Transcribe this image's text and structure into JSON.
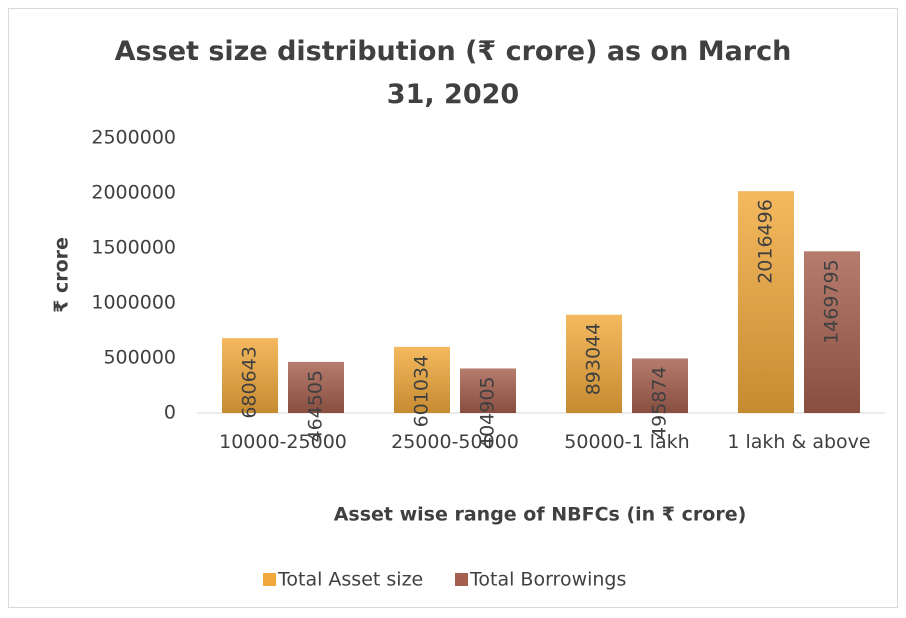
{
  "chart_data": {
    "type": "bar",
    "title": "Asset size distribution (₹ crore) as on March 31, 2020",
    "x_label": "Asset wise range of NBFCs (in ₹ crore)",
    "y_label": "₹ crore",
    "categories": [
      "10000-25000",
      "25000-50000",
      "50000-1 lakh",
      "1 lakh & above"
    ],
    "series": [
      {
        "name": "Total Asset size",
        "color": "#f2a93b",
        "values": [
          680643,
          601034,
          893044,
          2016496
        ]
      },
      {
        "name": "Total Borrowings",
        "color": "#a65f4e",
        "values": [
          464505,
          404905,
          495874,
          1469795
        ]
      }
    ],
    "ylim": [
      0,
      2500000
    ],
    "yticks": [
      0,
      500000,
      1000000,
      1500000,
      2000000,
      2500000
    ],
    "grid": false,
    "legend": "bottom"
  }
}
